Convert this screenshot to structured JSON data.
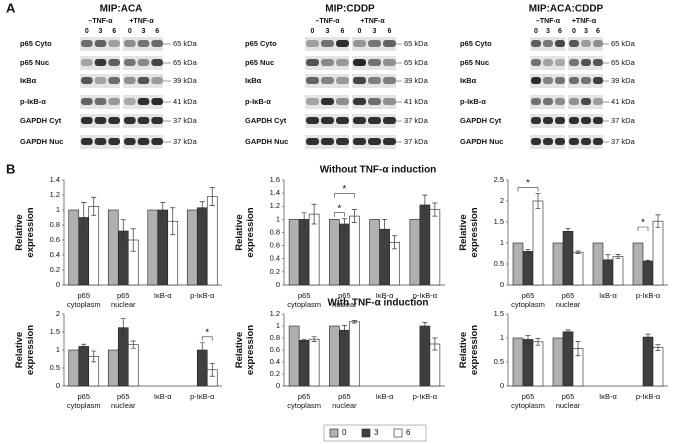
{
  "panel_a": {
    "label": "A",
    "blots": [
      {
        "title": "MIP:ACA",
        "minus": "–TNF-α",
        "plus": "+TNF-α",
        "times": [
          "0",
          "3",
          "6",
          "0",
          "3",
          "6"
        ],
        "rows": [
          "p65 Cyto",
          "p65 Nuc",
          "IκBα",
          "p-IκB-α",
          "GAPDH Cyt",
          "GAPDH Nuc"
        ],
        "kda": [
          "65 kDa",
          "65 kDa",
          "39 kDa",
          "41 kDa",
          "37 kDa",
          "37 kDa"
        ]
      },
      {
        "title": "MIP:CDDP",
        "minus": "–TNF-α",
        "plus": "+TNF-α",
        "times": [
          "0",
          "3",
          "6",
          "0",
          "3",
          "6"
        ],
        "rows": [
          "p65 Cyto",
          "p65 Nuc",
          "IκBα",
          "p-IκB-α",
          "GAPDH Cyt",
          "GAPDH Nuc"
        ],
        "kda": [
          "65 kDa",
          "65 kDa",
          "39 kDa",
          "41 kDa",
          "37 kDa",
          "37 kDa"
        ]
      },
      {
        "title": "MIP:ACA:CDDP",
        "minus": "–TNF-α",
        "plus": "+TNF-α",
        "times": [
          "0",
          "3",
          "6",
          "0",
          "3",
          "6"
        ],
        "rows": [
          "p65 Cyto",
          "p65 Nuc",
          "IκBα",
          "p-IκB-α",
          "GAPDH Cyt",
          "GAPDH Nuc"
        ],
        "kda": [
          "65 kDa",
          "65 kDa",
          "39 kDa",
          "41 kDa",
          "37 kDa",
          "37 kDa"
        ]
      }
    ]
  },
  "panel_b": {
    "label": "B",
    "row_titles": [
      "Without TNF-α induction",
      "With TNF-α induction"
    ]
  },
  "chart_data": [
    {
      "type": "bar",
      "ylabel": "Relative expression",
      "categories": [
        "p65 cytoplasm",
        "p65 nuclear",
        "IκB-α",
        "p-IκB-α"
      ],
      "ylim": [
        0,
        1.4
      ],
      "yticks": [
        0,
        0.2,
        0.4,
        0.6,
        0.8,
        1,
        1.2,
        1.4
      ],
      "series": [
        {
          "name": "0",
          "color": "#b0b0b0",
          "values": [
            1.0,
            1.0,
            1.0,
            1.0
          ],
          "errors": [
            0,
            0,
            0,
            0
          ]
        },
        {
          "name": "3",
          "color": "#404040",
          "values": [
            0.9,
            0.72,
            1.0,
            1.03
          ],
          "errors": [
            0.2,
            0.15,
            0.1,
            0.08
          ]
        },
        {
          "name": "6",
          "color": "#ffffff",
          "values": [
            1.05,
            0.6,
            0.85,
            1.18
          ],
          "errors": [
            0.12,
            0.15,
            0.18,
            0.12
          ]
        }
      ],
      "annotations": []
    },
    {
      "type": "bar",
      "ylabel": "Relative expression",
      "categories": [
        "p65 cytoplasm",
        "p65 nuclear",
        "IκB-α",
        "p-IκB-α"
      ],
      "ylim": [
        0,
        1.6
      ],
      "yticks": [
        0,
        0.2,
        0.4,
        0.6,
        0.8,
        1,
        1.2,
        1.4,
        1.6
      ],
      "series": [
        {
          "name": "0",
          "color": "#b0b0b0",
          "values": [
            1.0,
            1.0,
            1.0,
            1.0
          ],
          "errors": [
            0,
            0,
            0,
            0
          ]
        },
        {
          "name": "3",
          "color": "#404040",
          "values": [
            1.0,
            0.93,
            0.85,
            1.22
          ],
          "errors": [
            0.1,
            0.08,
            0.15,
            0.15
          ]
        },
        {
          "name": "6",
          "color": "#ffffff",
          "values": [
            1.08,
            1.05,
            0.65,
            1.15
          ],
          "errors": [
            0.15,
            0.1,
            0.1,
            0.1
          ]
        }
      ],
      "annotations": [
        {
          "text": "*",
          "category": 1,
          "series": [
            0,
            1
          ]
        },
        {
          "text": "*",
          "category": 1,
          "series": [
            0,
            2
          ]
        }
      ]
    },
    {
      "type": "bar",
      "ylabel": "Relative expression",
      "categories": [
        "p65 cytoplasm",
        "p65 nuclear",
        "IκB-α",
        "p-IκB-α"
      ],
      "ylim": [
        0,
        2.5
      ],
      "yticks": [
        0,
        0.5,
        1,
        1.5,
        2,
        2.5
      ],
      "series": [
        {
          "name": "0",
          "color": "#b0b0b0",
          "values": [
            1.0,
            1.0,
            1.0,
            1.0
          ],
          "errors": [
            0,
            0,
            0,
            0
          ]
        },
        {
          "name": "3",
          "color": "#404040",
          "values": [
            0.8,
            1.28,
            0.6,
            0.57
          ],
          "errors": [
            0.05,
            0.07,
            0.12,
            0.02
          ]
        },
        {
          "name": "6",
          "color": "#ffffff",
          "values": [
            2.0,
            0.78,
            0.68,
            1.52
          ],
          "errors": [
            0.18,
            0.03,
            0.05,
            0.15
          ]
        }
      ],
      "annotations": [
        {
          "text": "*",
          "category": 0,
          "series": [
            0,
            2
          ]
        },
        {
          "text": "*",
          "category": 3,
          "series": [
            0,
            1
          ]
        }
      ]
    },
    {
      "type": "bar",
      "ylabel": "Relative expression",
      "categories": [
        "p65 cytoplasm",
        "p65 nuclear",
        "IκB-α",
        "p-IκB-α"
      ],
      "ylim": [
        0,
        2
      ],
      "yticks": [
        0,
        0.5,
        1,
        1.5,
        2
      ],
      "series": [
        {
          "name": "0",
          "color": "#b0b0b0",
          "values": [
            1.0,
            1.0,
            null,
            null
          ],
          "errors": [
            0,
            0,
            null,
            null
          ]
        },
        {
          "name": "3",
          "color": "#404040",
          "values": [
            1.1,
            1.62,
            null,
            1.0
          ],
          "errors": [
            0.06,
            0.25,
            null,
            0.2
          ]
        },
        {
          "name": "6",
          "color": "#ffffff",
          "values": [
            0.82,
            1.15,
            null,
            0.45
          ],
          "errors": [
            0.15,
            0.1,
            null,
            0.18
          ]
        }
      ],
      "annotations": [
        {
          "text": "*",
          "category": 3,
          "series": [
            1,
            2
          ]
        }
      ]
    },
    {
      "type": "bar",
      "ylabel": "Relative expression",
      "categories": [
        "p65 cytoplasm",
        "p65 nuclear",
        "IκB-α",
        "p-IκB-α"
      ],
      "ylim": [
        0,
        1.2
      ],
      "yticks": [
        0,
        0.2,
        0.4,
        0.6,
        0.8,
        1,
        1.2
      ],
      "series": [
        {
          "name": "0",
          "color": "#b0b0b0",
          "values": [
            1.0,
            1.0,
            null,
            null
          ],
          "errors": [
            0,
            0,
            null,
            null
          ]
        },
        {
          "name": "3",
          "color": "#404040",
          "values": [
            0.76,
            0.93,
            null,
            1.0
          ],
          "errors": [
            0.02,
            0.08,
            null,
            0.06
          ]
        },
        {
          "name": "6",
          "color": "#ffffff",
          "values": [
            0.78,
            1.07,
            null,
            0.7
          ],
          "errors": [
            0.04,
            0.02,
            null,
            0.1
          ]
        }
      ],
      "annotations": []
    },
    {
      "type": "bar",
      "ylabel": "Relative expression",
      "categories": [
        "p65 cytoplasm",
        "p65 nuclear",
        "IκB-α",
        "p-IκB-α"
      ],
      "ylim": [
        0,
        1.5
      ],
      "yticks": [
        0,
        0.5,
        1,
        1.5
      ],
      "series": [
        {
          "name": "0",
          "color": "#b0b0b0",
          "values": [
            1.0,
            1.0,
            null,
            null
          ],
          "errors": [
            0,
            0,
            null,
            null
          ]
        },
        {
          "name": "3",
          "color": "#404040",
          "values": [
            0.97,
            1.13,
            null,
            1.02
          ],
          "errors": [
            0.08,
            0.04,
            null,
            0.06
          ]
        },
        {
          "name": "6",
          "color": "#ffffff",
          "values": [
            0.92,
            0.78,
            null,
            0.8
          ],
          "errors": [
            0.07,
            0.15,
            null,
            0.06
          ]
        }
      ],
      "annotations": []
    }
  ]
}
